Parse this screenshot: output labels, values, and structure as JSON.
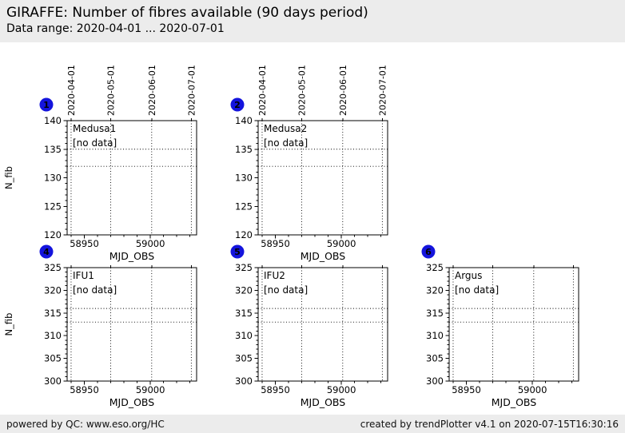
{
  "header": {
    "title": "GIRAFFE: Number of fibres available (90 days period)",
    "subtitle": "Data range: 2020-04-01 ... 2020-07-01"
  },
  "footer": {
    "left": "powered by QC: www.eso.org/HC",
    "right": "created by trendPlotter v4.1 on 2020-07-15T16:30:16"
  },
  "colors": {
    "band_bg": "#ececec",
    "anchor_blue": "#1414dd",
    "axis": "#000000",
    "plot_bg": "#ffffff",
    "no_data_green": "#008000",
    "no_data_red": "#ff0000",
    "no_data_magenta": "#cc00cc",
    "no_data_cyan": "#00c8c8"
  },
  "chart_data": [
    {
      "type": "scatter",
      "panel_number": "1",
      "title": "Medusa1",
      "annotation": "[no data]",
      "annotation_color": "#008000",
      "series": [],
      "xlabel": "MJD_OBS",
      "ylabel": "N_fib",
      "xlim": [
        58937,
        59035
      ],
      "ylim": [
        120,
        140
      ],
      "xticks": [
        58950,
        59000
      ],
      "yticks": [
        120,
        125,
        130,
        135,
        140
      ],
      "x_minor_step": 10,
      "y_minor_step": 1,
      "top_axis_dates": [
        "2020-04-01",
        "2020-05-01",
        "2020-06-01",
        "2020-07-01"
      ],
      "date_grid_mjd": [
        58940,
        58970,
        59001,
        59031
      ],
      "reference_lines_y": [
        135,
        132
      ],
      "grid": "dotted-vertical-at-dates",
      "legend": "none",
      "show_top_date_labels": true,
      "show_ylabel": true,
      "row": 0,
      "col": 0
    },
    {
      "type": "scatter",
      "panel_number": "2",
      "title": "Medusa2",
      "annotation": "[no data]",
      "annotation_color": "#ff0000",
      "series": [],
      "xlabel": "MJD_OBS",
      "ylabel": "N_fib",
      "xlim": [
        58937,
        59035
      ],
      "ylim": [
        120,
        140
      ],
      "xticks": [
        58950,
        59000
      ],
      "yticks": [
        120,
        125,
        130,
        135,
        140
      ],
      "x_minor_step": 10,
      "y_minor_step": 1,
      "top_axis_dates": [
        "2020-04-01",
        "2020-05-01",
        "2020-06-01",
        "2020-07-01"
      ],
      "date_grid_mjd": [
        58940,
        58970,
        59001,
        59031
      ],
      "reference_lines_y": [
        135,
        132
      ],
      "grid": "dotted-vertical-at-dates",
      "legend": "none",
      "show_top_date_labels": true,
      "show_ylabel": false,
      "row": 0,
      "col": 1
    },
    {
      "type": "scatter",
      "panel_number": "4",
      "title": "IFU1",
      "annotation": "[no data]",
      "annotation_color": "#ff0000",
      "series": [],
      "xlabel": "MJD_OBS",
      "ylabel": "N_fib",
      "xlim": [
        58937,
        59035
      ],
      "ylim": [
        300,
        325
      ],
      "xticks": [
        58950,
        59000
      ],
      "yticks": [
        300,
        305,
        310,
        315,
        320,
        325
      ],
      "x_minor_step": 10,
      "y_minor_step": 1,
      "top_axis_dates": [
        "2020-04-01",
        "2020-05-01",
        "2020-06-01",
        "2020-07-01"
      ],
      "date_grid_mjd": [
        58940,
        58970,
        59001,
        59031
      ],
      "reference_lines_y": [
        316,
        313
      ],
      "grid": "dotted-vertical-at-dates",
      "legend": "none",
      "show_top_date_labels": false,
      "show_ylabel": true,
      "row": 1,
      "col": 0
    },
    {
      "type": "scatter",
      "panel_number": "5",
      "title": "IFU2",
      "annotation": "[no data]",
      "annotation_color": "#cc00cc",
      "series": [],
      "xlabel": "MJD_OBS",
      "ylabel": "N_fib",
      "xlim": [
        58937,
        59035
      ],
      "ylim": [
        300,
        325
      ],
      "xticks": [
        58950,
        59000
      ],
      "yticks": [
        300,
        305,
        310,
        315,
        320,
        325
      ],
      "x_minor_step": 10,
      "y_minor_step": 1,
      "top_axis_dates": [
        "2020-04-01",
        "2020-05-01",
        "2020-06-01",
        "2020-07-01"
      ],
      "date_grid_mjd": [
        58940,
        58970,
        59001,
        59031
      ],
      "reference_lines_y": [
        316,
        313
      ],
      "grid": "dotted-vertical-at-dates",
      "legend": "none",
      "show_top_date_labels": false,
      "show_ylabel": false,
      "row": 1,
      "col": 1
    },
    {
      "type": "scatter",
      "panel_number": "6",
      "title": "Argus",
      "annotation": "[no data]",
      "annotation_color": "#00c8c8",
      "series": [],
      "xlabel": "MJD_OBS",
      "ylabel": "N_fib",
      "xlim": [
        58937,
        59035
      ],
      "ylim": [
        300,
        325
      ],
      "xticks": [
        58950,
        59000
      ],
      "yticks": [
        300,
        305,
        310,
        315,
        320,
        325
      ],
      "x_minor_step": 10,
      "y_minor_step": 1,
      "top_axis_dates": [
        "2020-04-01",
        "2020-05-01",
        "2020-06-01",
        "2020-07-01"
      ],
      "date_grid_mjd": [
        58940,
        58970,
        59001,
        59031
      ],
      "reference_lines_y": [
        316,
        313
      ],
      "grid": "dotted-vertical-at-dates",
      "legend": "none",
      "show_top_date_labels": false,
      "show_ylabel": false,
      "row": 1,
      "col": 2
    }
  ]
}
